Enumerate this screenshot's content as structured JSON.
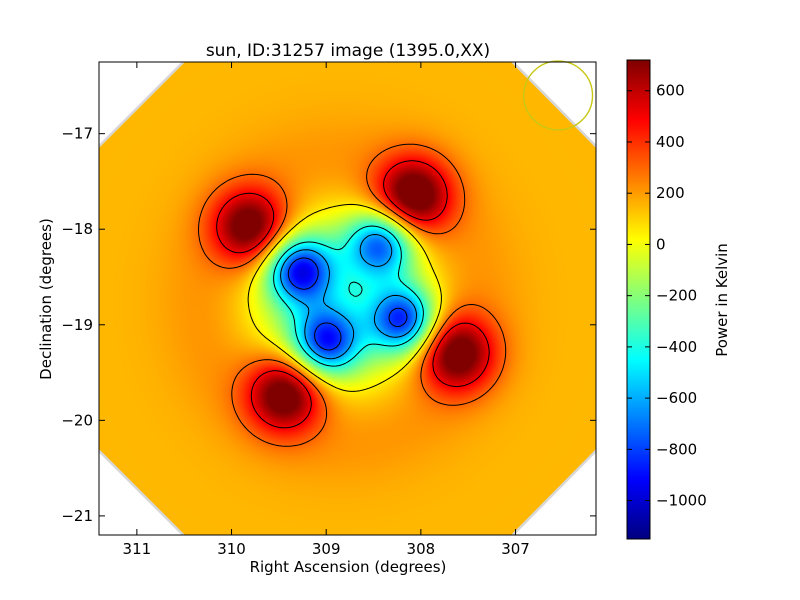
{
  "chart_data": {
    "type": "heatmap",
    "title": "sun, ID:31257 image (1395.0,XX)",
    "xlabel": "Right Ascension (degrees)",
    "ylabel": "Declination (degrees)",
    "xlim": [
      311.4,
      306.15
    ],
    "ylim": [
      -21.2,
      -16.25
    ],
    "x_ticks": [
      311,
      310,
      309,
      308,
      307
    ],
    "x_tick_labels": [
      "311",
      "310",
      "309",
      "308",
      "307"
    ],
    "y_ticks": [
      -17,
      -18,
      -19,
      -20,
      -21
    ],
    "y_tick_labels": [
      "−17",
      "−18",
      "−19",
      "−20",
      "−21"
    ],
    "colorbar": {
      "label": "Power in Kelvin",
      "range": [
        -1150,
        720
      ],
      "ticks": [
        600,
        400,
        200,
        0,
        -200,
        -400,
        -600,
        -800,
        -1000
      ],
      "tick_labels": [
        "600",
        "400",
        "200",
        "0",
        "−200",
        "−400",
        "−600",
        "−800",
        "−1000"
      ],
      "colormap": "jet"
    },
    "background_level": 150,
    "data_center": {
      "ra": 308.85,
      "dec": -18.75
    },
    "hot_spots": [
      {
        "ra": 309.8,
        "dec": -17.98,
        "peak": 640
      },
      {
        "ra": 308.08,
        "dec": -17.65,
        "peak": 680
      },
      {
        "ra": 307.62,
        "dec": -19.3,
        "peak": 640
      },
      {
        "ra": 309.43,
        "dec": -19.72,
        "peak": 680
      }
    ],
    "cold_spots": [
      {
        "ra": 309.28,
        "dec": -18.43,
        "peak": -1130
      },
      {
        "ra": 308.42,
        "dec": -18.15,
        "peak": -1020
      },
      {
        "ra": 308.18,
        "dec": -18.95,
        "peak": -1100
      },
      {
        "ra": 309.0,
        "dec": -19.18,
        "peak": -1050
      }
    ],
    "beam_circle": {
      "ra": 306.55,
      "dec": -16.6,
      "radius_deg": 0.36,
      "color": "#c8c814"
    },
    "contour_levels_positive": [
      50,
      300,
      500
    ],
    "contour_levels_negative": [
      -400,
      -600,
      -800,
      -1000
    ],
    "grid": false,
    "frame_color": "#000000"
  }
}
